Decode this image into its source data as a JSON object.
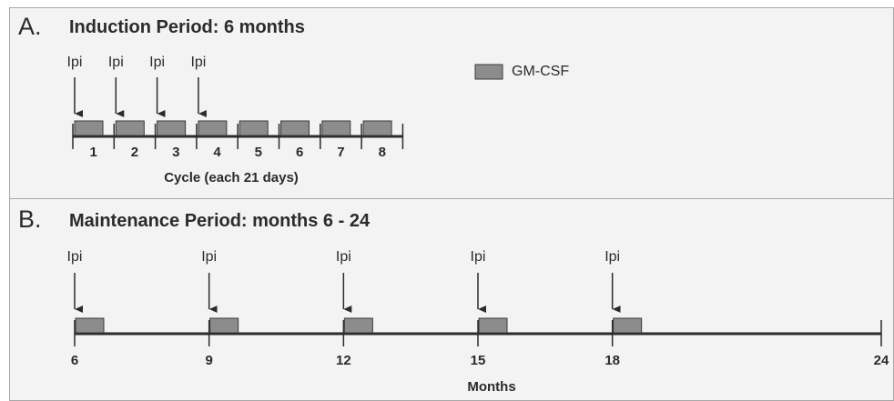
{
  "panel_a": {
    "letter": "A.",
    "title": "Induction Period: 6 months",
    "dose_label": "Ipi",
    "dose_cycles": [
      1,
      2,
      3,
      4
    ],
    "cycles": [
      "1",
      "2",
      "3",
      "4",
      "5",
      "6",
      "7",
      "8"
    ],
    "axis_title": "Cycle (each 21 days)",
    "legend_label": "GM-CSF"
  },
  "panel_b": {
    "letter": "B.",
    "title": "Maintenance Period: months 6 - 24",
    "dose_label": "Ipi",
    "dose_months": [
      6,
      9,
      12,
      15,
      18
    ],
    "ticks": [
      "6",
      "9",
      "12",
      "15",
      "18",
      "24"
    ],
    "axis_title": "Months"
  },
  "colors": {
    "block_fill": "#8c8c8c",
    "block_stroke": "#3a3a3a",
    "line": "#2b2b2b",
    "panel_bg": "#f3f3f3"
  }
}
